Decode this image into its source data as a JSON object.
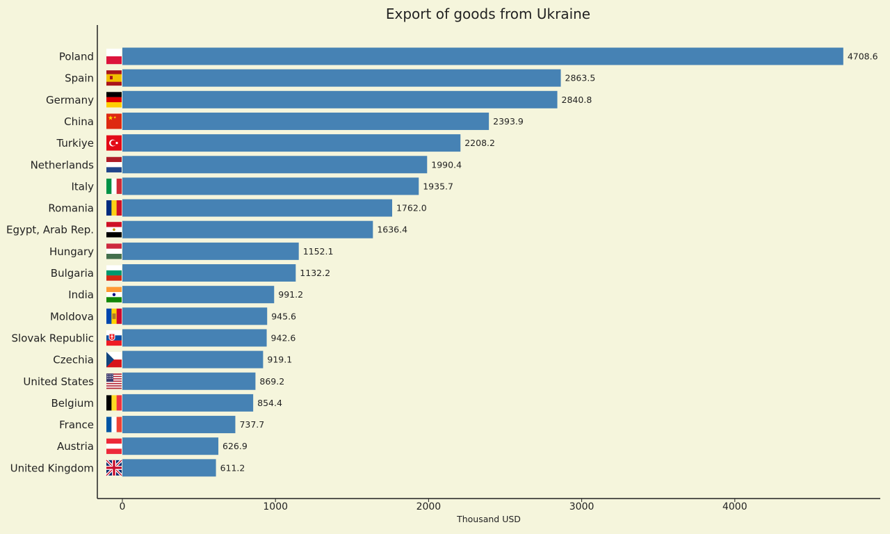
{
  "chart_data": {
    "type": "bar",
    "orientation": "horizontal",
    "title": "Export of goods from Ukraine",
    "xlabel": "Thousand USD",
    "ylabel": "",
    "xlim": [
      -170,
      4940
    ],
    "xticks": [
      0,
      1000,
      2000,
      3000,
      4000
    ],
    "grid": false,
    "bar_color": "#4682b4",
    "background": "#f5f5dc",
    "categories": [
      "Poland",
      "Spain",
      "Germany",
      "China",
      "Turkiye",
      "Netherlands",
      "Italy",
      "Romania",
      "Egypt, Arab Rep.",
      "Hungary",
      "Bulgaria",
      "India",
      "Moldova",
      "Slovak Republic",
      "Czechia",
      "United States",
      "Belgium",
      "France",
      "Austria",
      "United Kingdom"
    ],
    "values": [
      4708.6,
      2863.5,
      2840.8,
      2393.9,
      2208.2,
      1990.4,
      1935.7,
      1762.0,
      1636.4,
      1152.1,
      1132.2,
      991.2,
      945.6,
      942.6,
      919.1,
      869.2,
      854.4,
      737.7,
      626.9,
      611.2
    ],
    "value_labels": [
      "4708.6",
      "2863.5",
      "2840.8",
      "2393.9",
      "2208.2",
      "1990.4",
      "1935.7",
      "1762.0",
      "1636.4",
      "1152.1",
      "1132.2",
      "991.2",
      "945.6",
      "942.6",
      "919.1",
      "869.2",
      "854.4",
      "737.7",
      "626.9",
      "611.2"
    ],
    "flag_icons": [
      "flag-poland-icon",
      "flag-spain-icon",
      "flag-germany-icon",
      "flag-china-icon",
      "flag-turkiye-icon",
      "flag-netherlands-icon",
      "flag-italy-icon",
      "flag-romania-icon",
      "flag-egypt-icon",
      "flag-hungary-icon",
      "flag-bulgaria-icon",
      "flag-india-icon",
      "flag-moldova-icon",
      "flag-slovakia-icon",
      "flag-czechia-icon",
      "flag-united-states-icon",
      "flag-belgium-icon",
      "flag-france-icon",
      "flag-austria-icon",
      "flag-united-kingdom-icon"
    ]
  }
}
